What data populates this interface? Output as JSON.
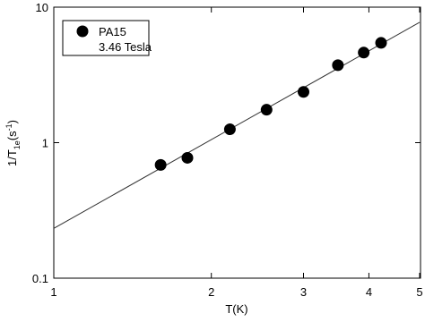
{
  "chart_data": {
    "type": "scatter",
    "xlabel": "T(K)",
    "ylabel": [
      "1/T",
      "1e",
      "(s",
      "-1",
      ")"
    ],
    "x": [
      1.6,
      1.8,
      2.17,
      2.55,
      3.0,
      3.49,
      3.91,
      4.22
    ],
    "series": [
      {
        "name": "PA15",
        "color": "#000000",
        "values": [
          0.685,
          0.773,
          1.255,
          1.75,
          2.37,
          3.73,
          4.62,
          5.45
        ]
      }
    ],
    "legend_note": "3.46 Tesla",
    "legend_position": "upper left",
    "fit": {
      "x": [
        1,
        5
      ],
      "values": [
        0.233,
        7.73
      ],
      "color": "#333333"
    },
    "xlim": [
      1,
      5
    ],
    "ylim": [
      0.1,
      10
    ],
    "xticks": [
      1,
      2,
      3,
      4,
      5
    ],
    "yticks": [
      0.1,
      1,
      10
    ],
    "xscale": "log",
    "yscale": "log"
  }
}
